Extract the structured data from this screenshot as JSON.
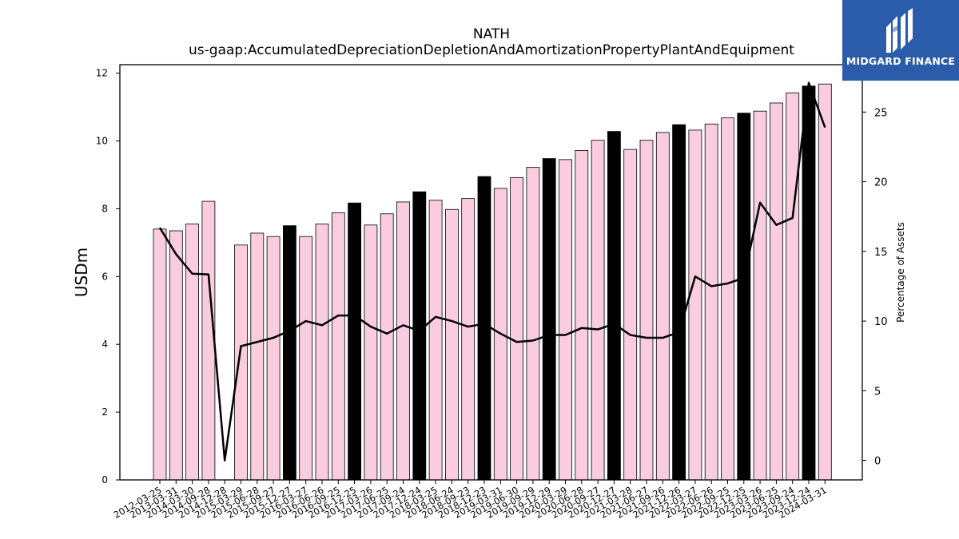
{
  "chart_data": {
    "type": "bar",
    "title": "NATH",
    "subtitle": "us-gaap:AccumulatedDepreciationDepletionAndAmortizationPropertyPlantAndEquipment",
    "ylabel": "USDm",
    "ylabel_right": "Percentage of Assets",
    "ylim": [
      0,
      12.25
    ],
    "ylim_right": [
      -1.4,
      28.4
    ],
    "yticks": [
      0,
      2,
      4,
      6,
      8,
      10,
      12
    ],
    "yticks_right": [
      0,
      5,
      10,
      15,
      20,
      25
    ],
    "categories": [
      "2012-03-25",
      "2013-03-31",
      "2014-03-30",
      "2014-09-28",
      "2014-12-28",
      "2015-03-29",
      "2015-06-28",
      "2015-09-27",
      "2015-12-27",
      "2016-03-27",
      "2016-06-26",
      "2016-09-25",
      "2016-12-25",
      "2017-03-26",
      "2017-06-25",
      "2017-09-24",
      "2017-12-24",
      "2018-03-25",
      "2018-06-24",
      "2018-09-23",
      "2018-12-23",
      "2019-03-31",
      "2019-06-30",
      "2019-09-29",
      "2019-12-29",
      "2020-03-29",
      "2020-06-28",
      "2020-09-27",
      "2020-12-27",
      "2021-03-28",
      "2021-06-27",
      "2021-09-26",
      "2021-12-26",
      "2022-03-27",
      "2022-06-26",
      "2022-09-25",
      "2022-12-25",
      "2023-03-26",
      "2023-06-25",
      "2023-09-24",
      "2023-12-24",
      "2024-03-31"
    ],
    "series": [
      {
        "type": "bar",
        "axis": "left",
        "values": [
          7.4,
          7.35,
          7.55,
          8.22,
          0,
          6.93,
          7.28,
          7.18,
          7.5,
          7.18,
          7.55,
          7.88,
          8.17,
          7.52,
          7.85,
          8.2,
          8.5,
          8.25,
          7.98,
          8.3,
          8.95,
          8.6,
          8.92,
          9.22,
          9.48,
          9.45,
          9.72,
          10.02,
          10.28,
          9.75,
          10.02,
          10.25,
          10.48,
          10.32,
          10.5,
          10.68,
          10.82,
          10.88,
          11.12,
          11.42,
          11.62,
          11.68
        ],
        "highlight": [
          false,
          false,
          false,
          false,
          false,
          false,
          false,
          false,
          true,
          false,
          false,
          false,
          true,
          false,
          false,
          false,
          true,
          false,
          false,
          false,
          true,
          false,
          false,
          false,
          true,
          false,
          false,
          false,
          true,
          false,
          false,
          false,
          true,
          false,
          false,
          false,
          true,
          false,
          false,
          false,
          true,
          false
        ]
      },
      {
        "type": "line",
        "axis": "right",
        "values": [
          16.7,
          14.8,
          13.4,
          13.35,
          0,
          8.2,
          8.5,
          8.8,
          9.3,
          10.0,
          9.7,
          10.4,
          10.4,
          9.6,
          9.1,
          9.7,
          9.3,
          10.3,
          10.0,
          9.6,
          9.8,
          9.1,
          8.5,
          8.6,
          9.0,
          9.0,
          9.5,
          9.4,
          9.8,
          9.0,
          8.8,
          8.8,
          9.2,
          13.2,
          12.5,
          12.7,
          13.1,
          18.5,
          16.9,
          17.4,
          27.1,
          23.9
        ]
      }
    ],
    "colors": {
      "bar_default": "#f9cce0",
      "bar_highlight": "#000000",
      "line": "#000000"
    }
  },
  "logo": {
    "text": "MIDGARD FINANCE",
    "background": "#2a5caa"
  }
}
